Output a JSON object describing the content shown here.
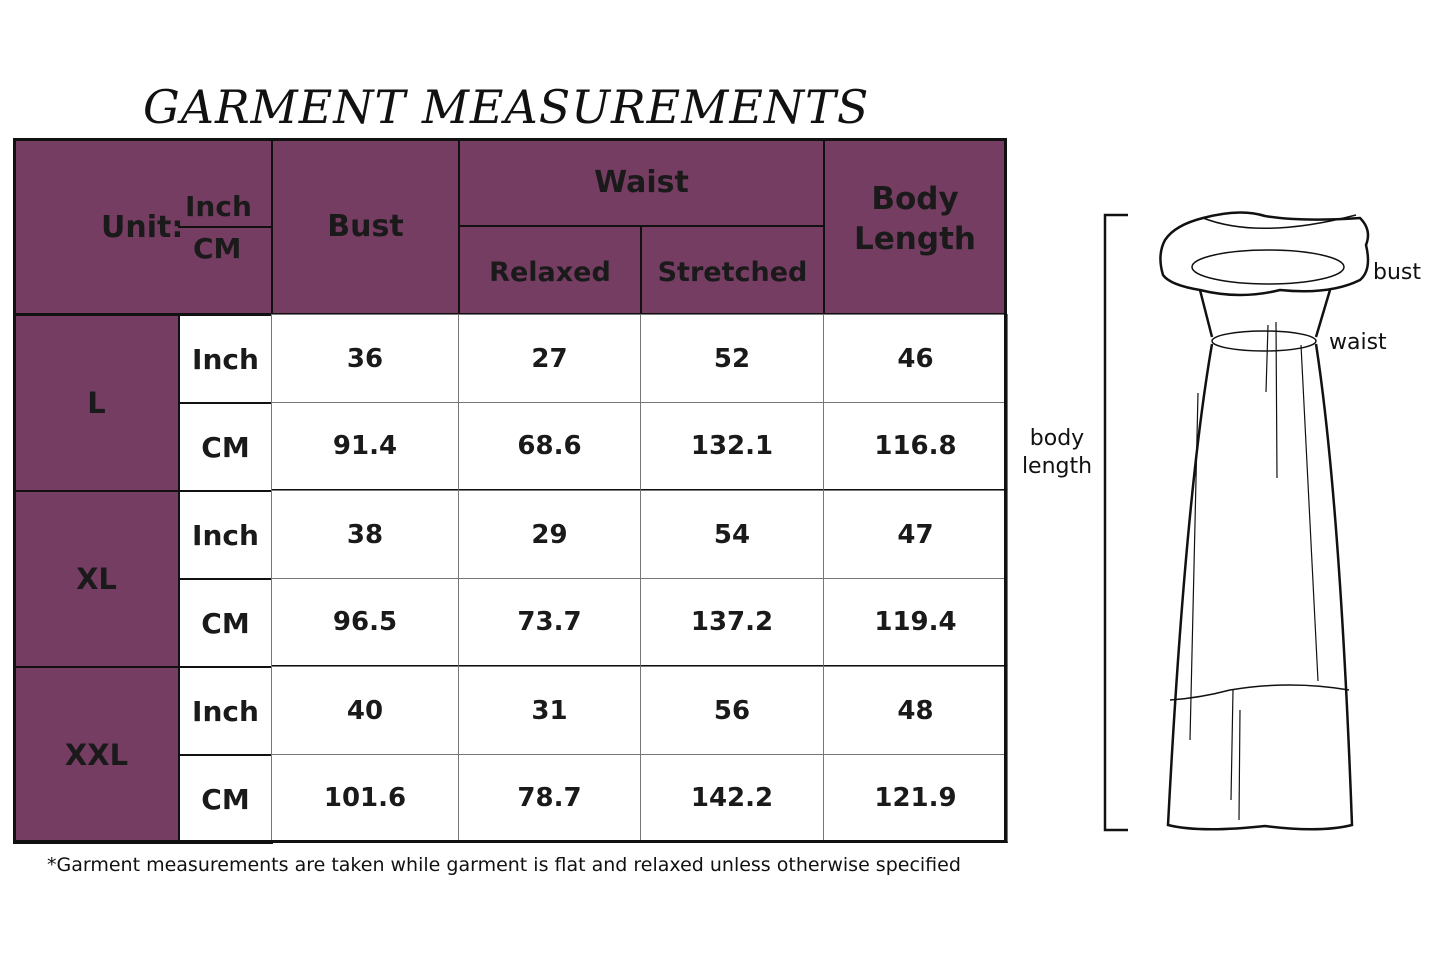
{
  "title": "GARMENT MEASUREMENTS",
  "header": {
    "unit_label": "Unit:",
    "unit_inch": "Inch",
    "unit_cm": "CM",
    "bust": "Bust",
    "waist": "Waist",
    "relaxed": "Relaxed",
    "stretched": "Stretched",
    "body_length_1": "Body",
    "body_length_2": "Length"
  },
  "sizes": [
    {
      "size": "L",
      "rows": [
        {
          "unit": "Inch",
          "values": [
            "36",
            "27",
            "52",
            "46"
          ]
        },
        {
          "unit": "CM",
          "values": [
            "91.4",
            "68.6",
            "132.1",
            "116.8"
          ]
        }
      ]
    },
    {
      "size": "XL",
      "rows": [
        {
          "unit": "Inch",
          "values": [
            "38",
            "29",
            "54",
            "47"
          ]
        },
        {
          "unit": "CM",
          "values": [
            "96.5",
            "73.7",
            "137.2",
            "119.4"
          ]
        }
      ]
    },
    {
      "size": "XXL",
      "rows": [
        {
          "unit": "Inch",
          "values": [
            "40",
            "31",
            "56",
            "48"
          ]
        },
        {
          "unit": "CM",
          "values": [
            "101.6",
            "78.7",
            "142.2",
            "121.9"
          ]
        }
      ]
    }
  ],
  "footnote": "*Garment measurements are taken while garment is flat and relaxed unless otherwise specified",
  "diagram": {
    "bust": "bust",
    "waist": "waist",
    "body_length_1": "body",
    "body_length_2": "length"
  },
  "colors": {
    "header_purple": "#763d63",
    "border": "#111111"
  }
}
